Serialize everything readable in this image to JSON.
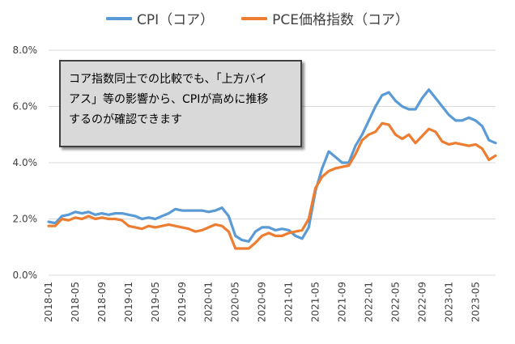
{
  "chart_data": {
    "type": "line",
    "title": "",
    "xlabel": "",
    "ylabel": "",
    "ylim": [
      0,
      8
    ],
    "y_ticks": [
      "0.0%",
      "2.0%",
      "4.0%",
      "6.0%",
      "8.0%"
    ],
    "x_ticks": [
      "2018-01",
      "2018-05",
      "2018-09",
      "2019-01",
      "2019-05",
      "2019-09",
      "2020-01",
      "2020-05",
      "2020-09",
      "2021-01",
      "2021-05",
      "2021-09",
      "2022-01",
      "2022-05",
      "2022-09",
      "2023-01",
      "2023-05"
    ],
    "x_start": "2018-01",
    "grid": "horizontal",
    "legend": "top-center",
    "series": [
      {
        "name": "CPI（コア）",
        "color": "#5b9bd5",
        "values": [
          1.9,
          1.85,
          2.1,
          2.15,
          2.25,
          2.2,
          2.25,
          2.15,
          2.2,
          2.15,
          2.2,
          2.2,
          2.15,
          2.1,
          2.0,
          2.05,
          2.0,
          2.1,
          2.2,
          2.35,
          2.3,
          2.3,
          2.3,
          2.3,
          2.25,
          2.3,
          2.4,
          2.1,
          1.4,
          1.25,
          1.2,
          1.55,
          1.7,
          1.7,
          1.6,
          1.65,
          1.6,
          1.4,
          1.3,
          1.7,
          3.0,
          3.8,
          4.4,
          4.2,
          4.0,
          4.0,
          4.6,
          5.0,
          5.5,
          6.0,
          6.4,
          6.5,
          6.2,
          6.0,
          5.9,
          5.9,
          6.3,
          6.6,
          6.3,
          6.0,
          5.7,
          5.5,
          5.5,
          5.6,
          5.5,
          5.3,
          4.8,
          4.7
        ]
      },
      {
        "name": "PCE価格指数（コア）",
        "color": "#ed7d31",
        "values": [
          1.75,
          1.75,
          2.0,
          1.95,
          2.05,
          2.0,
          2.1,
          2.0,
          2.05,
          2.0,
          2.0,
          1.95,
          1.75,
          1.7,
          1.65,
          1.75,
          1.7,
          1.75,
          1.8,
          1.75,
          1.7,
          1.65,
          1.55,
          1.6,
          1.7,
          1.8,
          1.75,
          1.55,
          0.95,
          0.95,
          0.95,
          1.15,
          1.4,
          1.5,
          1.4,
          1.4,
          1.5,
          1.55,
          1.6,
          2.0,
          3.1,
          3.5,
          3.7,
          3.8,
          3.85,
          3.9,
          4.3,
          4.8,
          5.0,
          5.1,
          5.4,
          5.35,
          5.0,
          4.85,
          5.0,
          4.7,
          4.95,
          5.2,
          5.1,
          4.75,
          4.65,
          4.7,
          4.65,
          4.6,
          4.65,
          4.5,
          4.1,
          4.25
        ]
      }
    ]
  },
  "annotation": {
    "line1": "コア指数同士での比較でも、「上方バイ",
    "line2": "アス」等の影響から、CPIが高めに推移",
    "line3": "するのが確認できます"
  }
}
